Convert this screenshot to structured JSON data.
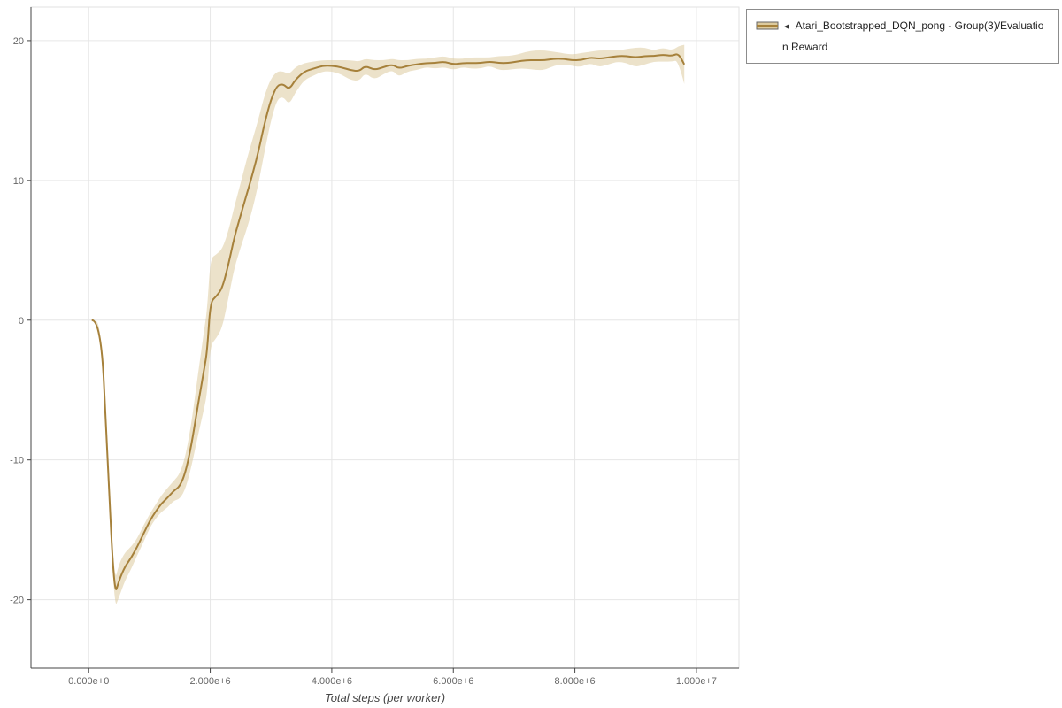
{
  "page": {
    "background": "#ffffff"
  },
  "colors": {
    "grid": "#e6e6e6",
    "plot_border": "#e2e2e2",
    "axis": "#444444",
    "tick_label": "#666666",
    "accent_line": "#a6813b",
    "accent_band": "#ddcb9e"
  },
  "legend": {
    "collapse_glyph": "◄",
    "label": "Atari_Bootstrapped_DQN_pong - Group(3)/Evaluation Reward"
  },
  "chart_data": {
    "type": "line",
    "title": "",
    "xlabel": "Total steps (per worker)",
    "ylabel": "",
    "grid": true,
    "legend_position": "top-right",
    "x_range": [
      -950000,
      10700000
    ],
    "y_range": [
      -24.9,
      22.4
    ],
    "x_ticks": [
      {
        "value": 0,
        "label": "0.000e+0"
      },
      {
        "value": 2000000,
        "label": "2.000e+6"
      },
      {
        "value": 4000000,
        "label": "4.000e+6"
      },
      {
        "value": 6000000,
        "label": "6.000e+6"
      },
      {
        "value": 8000000,
        "label": "8.000e+6"
      },
      {
        "value": 10000000,
        "label": "1.000e+7"
      }
    ],
    "y_ticks": [
      {
        "value": -20,
        "label": "-20"
      },
      {
        "value": -10,
        "label": "-10"
      },
      {
        "value": 0,
        "label": "0"
      },
      {
        "value": 10,
        "label": "10"
      },
      {
        "value": 20,
        "label": "20"
      }
    ],
    "series": [
      {
        "name": "Atari_Bootstrapped_DQN_pong - Group(3)/Evaluation Reward",
        "line_color": "#a6813b",
        "band_color": "#ddcb9e",
        "band_opacity": 0.55,
        "x": [
          50000,
          200000,
          300000,
          420000,
          500000,
          600000,
          700000,
          800000,
          900000,
          1000000,
          1100000,
          1200000,
          1300000,
          1400000,
          1500000,
          1600000,
          1700000,
          1800000,
          1900000,
          1950000,
          2000000,
          2100000,
          2200000,
          2300000,
          2400000,
          2500000,
          2600000,
          2700000,
          2800000,
          2900000,
          3000000,
          3100000,
          3200000,
          3300000,
          3400000,
          3550000,
          3700000,
          3850000,
          4000000,
          4150000,
          4300000,
          4450000,
          4550000,
          4700000,
          4850000,
          5000000,
          5100000,
          5250000,
          5400000,
          5550000,
          5700000,
          5850000,
          6000000,
          6150000,
          6300000,
          6450000,
          6600000,
          6750000,
          6900000,
          7050000,
          7200000,
          7350000,
          7500000,
          7650000,
          7800000,
          7950000,
          8100000,
          8250000,
          8400000,
          8550000,
          8700000,
          8850000,
          9000000,
          9150000,
          9300000,
          9450000,
          9600000,
          9700000,
          9800000
        ],
        "mean": [
          0,
          0,
          -9,
          -19.8,
          -18.6,
          -17.6,
          -17,
          -16.2,
          -15.3,
          -14.4,
          -13.7,
          -13.1,
          -12.7,
          -12.2,
          -11.9,
          -10.8,
          -8.7,
          -6,
          -3.5,
          -2.2,
          1.3,
          1.7,
          2.3,
          4,
          6,
          7.5,
          9,
          10.5,
          12.2,
          14.2,
          15.8,
          16.8,
          16.9,
          16.5,
          17.2,
          17.8,
          18,
          18.2,
          18.2,
          18.1,
          17.9,
          17.8,
          18.2,
          17.9,
          18.1,
          18.3,
          18,
          18.2,
          18.3,
          18.4,
          18.4,
          18.5,
          18.3,
          18.4,
          18.4,
          18.4,
          18.5,
          18.4,
          18.4,
          18.5,
          18.6,
          18.6,
          18.6,
          18.7,
          18.7,
          18.6,
          18.6,
          18.8,
          18.7,
          18.8,
          18.9,
          18.9,
          18.8,
          18.9,
          18.9,
          19,
          18.9,
          19.1,
          18.3
        ],
        "sd": [
          0.1,
          0.1,
          0.5,
          0.9,
          1.2,
          1,
          0.8,
          0.6,
          0.6,
          0.5,
          0.5,
          0.6,
          0.7,
          0.7,
          0.9,
          1.2,
          1.6,
          2.2,
          2.8,
          3,
          3.1,
          3,
          2.8,
          2.4,
          2.2,
          2.3,
          2.5,
          2.5,
          2.3,
          2,
          1.5,
          1,
          0.9,
          1.1,
          0.9,
          0.6,
          0.5,
          0.4,
          0.4,
          0.5,
          0.7,
          0.7,
          0.5,
          0.7,
          0.5,
          0.4,
          0.6,
          0.4,
          0.4,
          0.3,
          0.4,
          0.4,
          0.4,
          0.3,
          0.4,
          0.4,
          0.3,
          0.5,
          0.5,
          0.5,
          0.6,
          0.7,
          0.7,
          0.5,
          0.4,
          0.4,
          0.5,
          0.4,
          0.6,
          0.5,
          0.4,
          0.5,
          0.7,
          0.6,
          0.4,
          0.5,
          0.4,
          0.5,
          1.4
        ]
      }
    ]
  }
}
